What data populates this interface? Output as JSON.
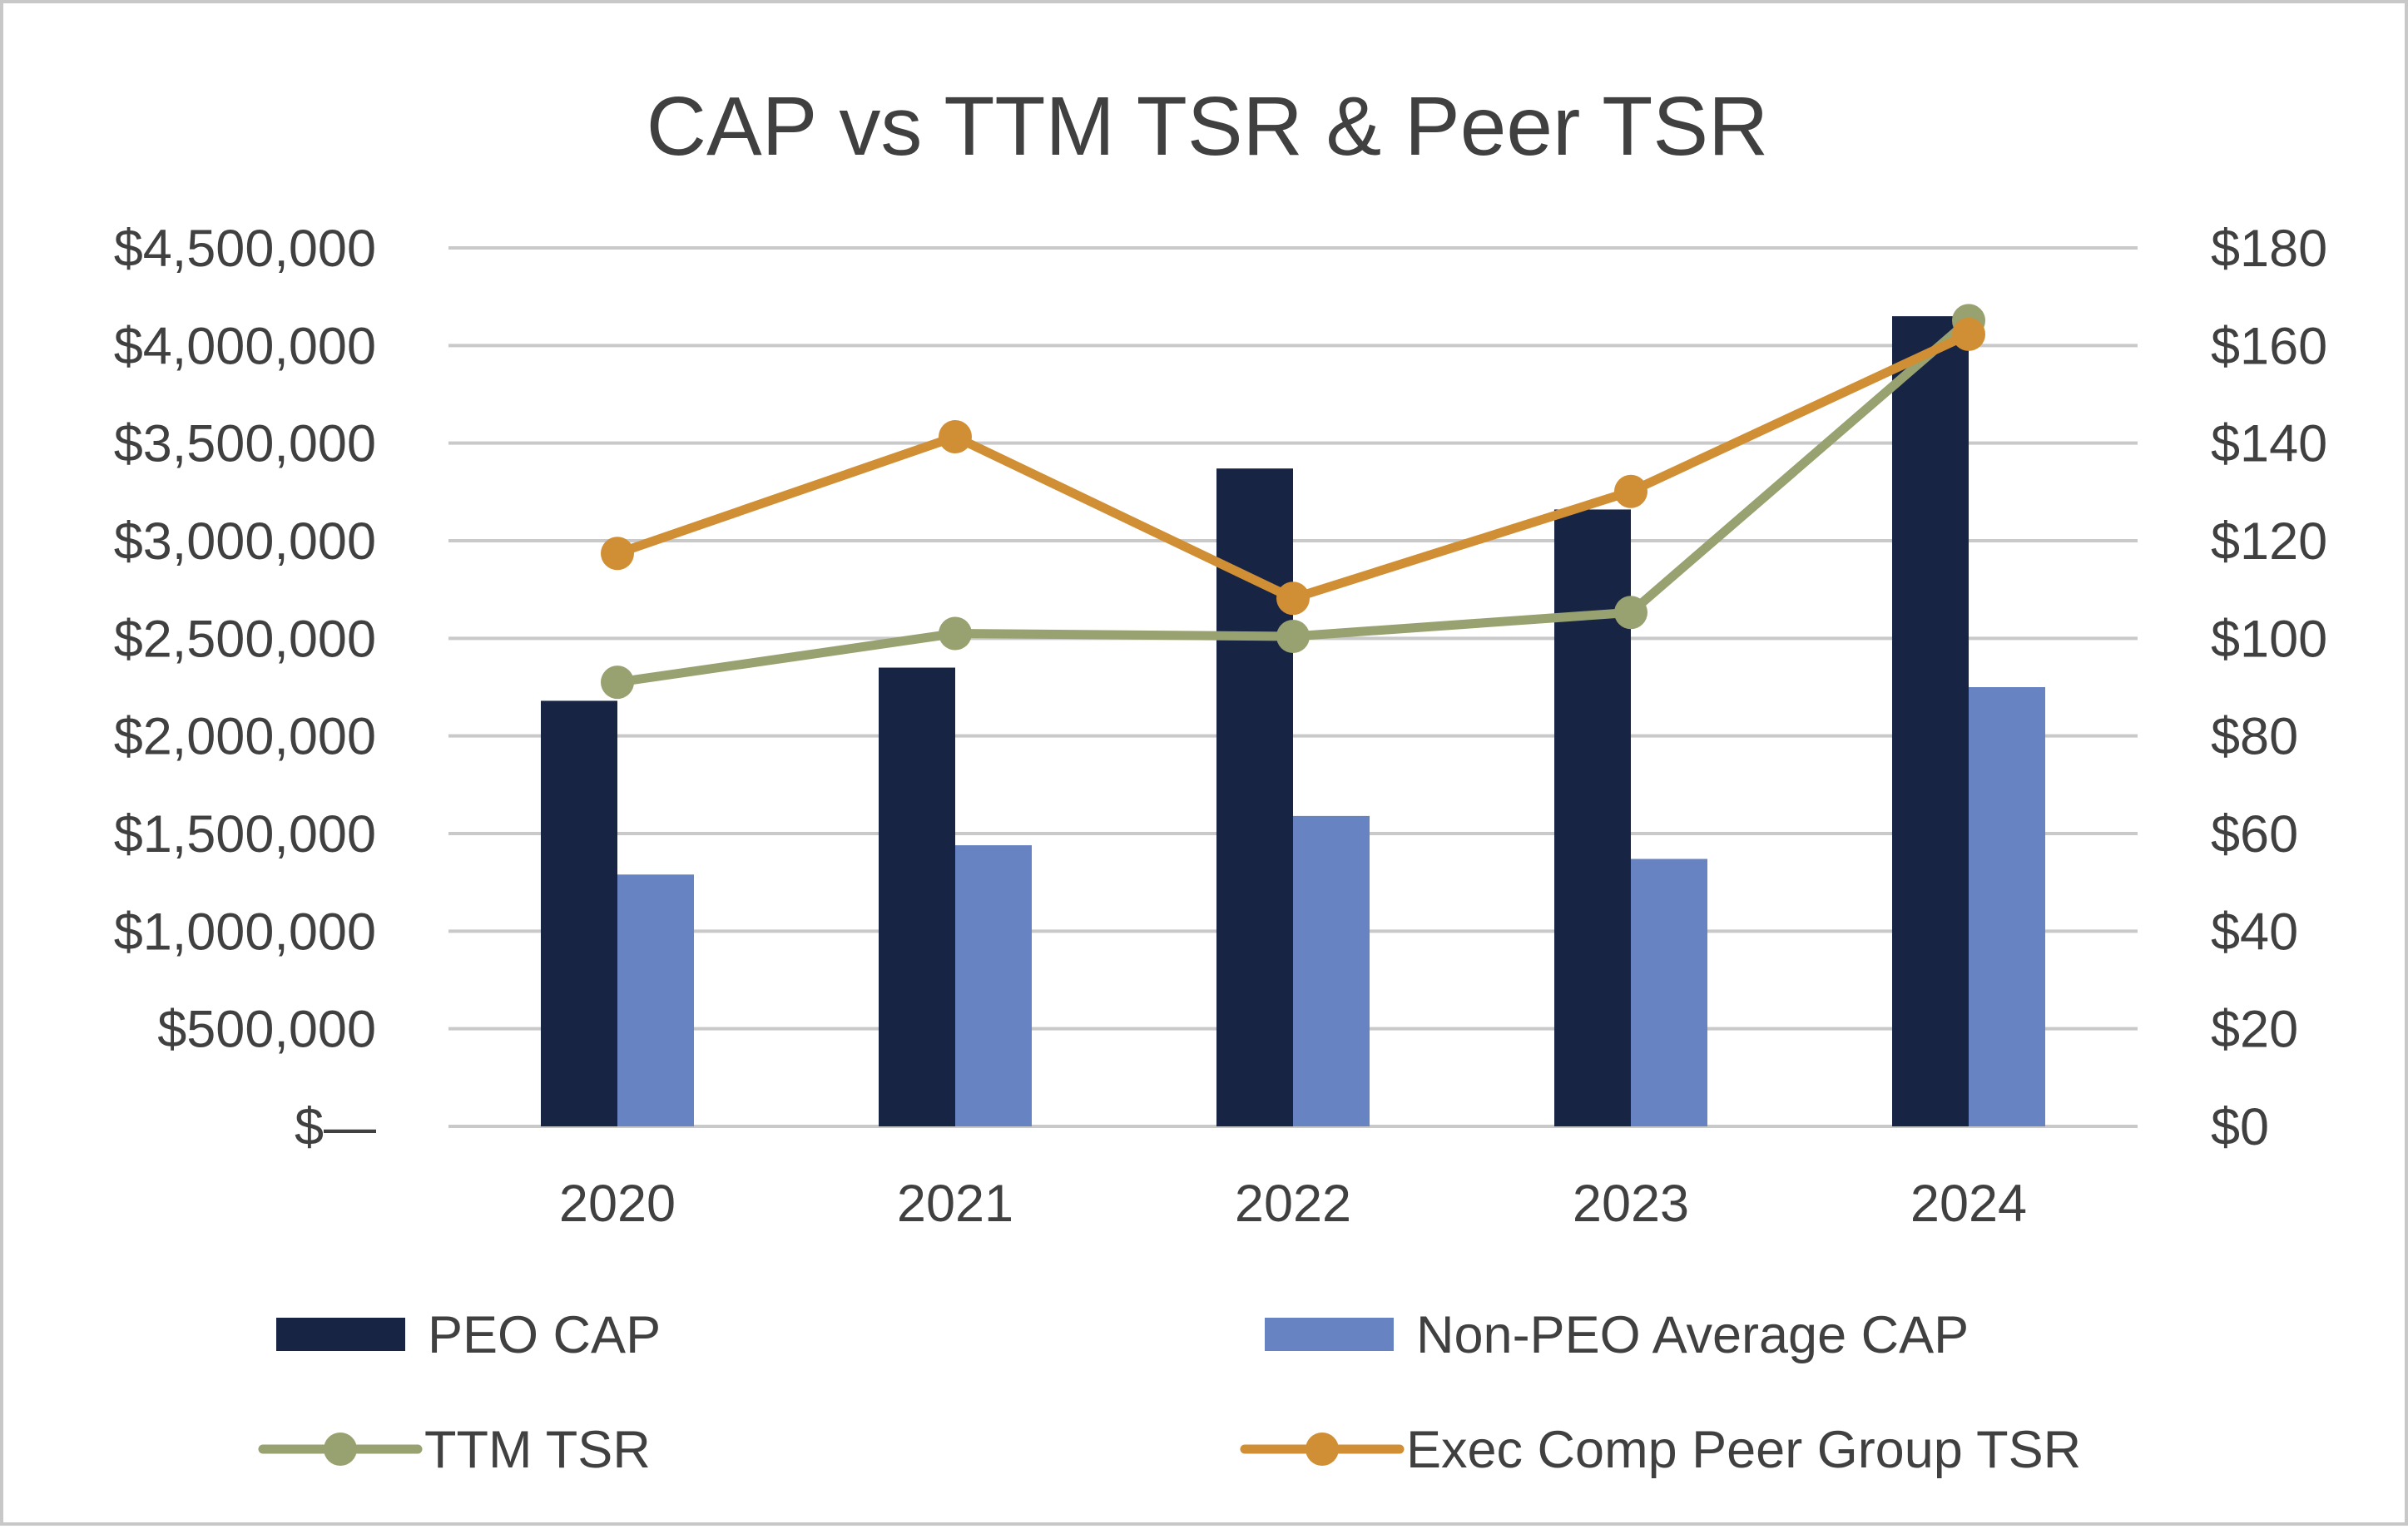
{
  "chart_data": {
    "type": "bar",
    "title": "CAP vs TTM TSR & Peer TSR",
    "categories": [
      "2020",
      "2021",
      "2022",
      "2023",
      "2024"
    ],
    "left_axis": {
      "min": 0,
      "max": 4500000,
      "step": 500000,
      "tick_labels": [
        "$—",
        "$500,000",
        "$1,000,000",
        "$1,500,000",
        "$2,000,000",
        "$2,500,000",
        "$3,000,000",
        "$3,500,000",
        "$4,000,000",
        "$4,500,000"
      ]
    },
    "right_axis": {
      "min": 0,
      "max": 180,
      "step": 20,
      "tick_labels": [
        "$0",
        "$20",
        "$40",
        "$60",
        "$80",
        "$100",
        "$120",
        "$140",
        "$160",
        "$180"
      ]
    },
    "series": [
      {
        "name": "PEO CAP",
        "kind": "bar",
        "axis": "left",
        "color": "#172443",
        "values": [
          2180000,
          2350000,
          3370000,
          3160000,
          4150000
        ]
      },
      {
        "name": "Non-PEO Average CAP",
        "kind": "bar",
        "axis": "left",
        "color": "#6783c1",
        "values": [
          1290000,
          1440000,
          1590000,
          1370000,
          2250000
        ]
      },
      {
        "name": "TTM TSR",
        "kind": "line",
        "axis": "right",
        "color": "#98a170",
        "values": [
          91.0,
          101.0,
          100.4,
          105.3,
          165.1
        ]
      },
      {
        "name": "Exec Comp Peer Group TSR",
        "kind": "line",
        "axis": "right",
        "color": "#d08f34",
        "values": [
          117.4,
          141.3,
          108.2,
          130.1,
          162.3
        ]
      }
    ],
    "gridlines": true,
    "legend_position": "bottom"
  }
}
